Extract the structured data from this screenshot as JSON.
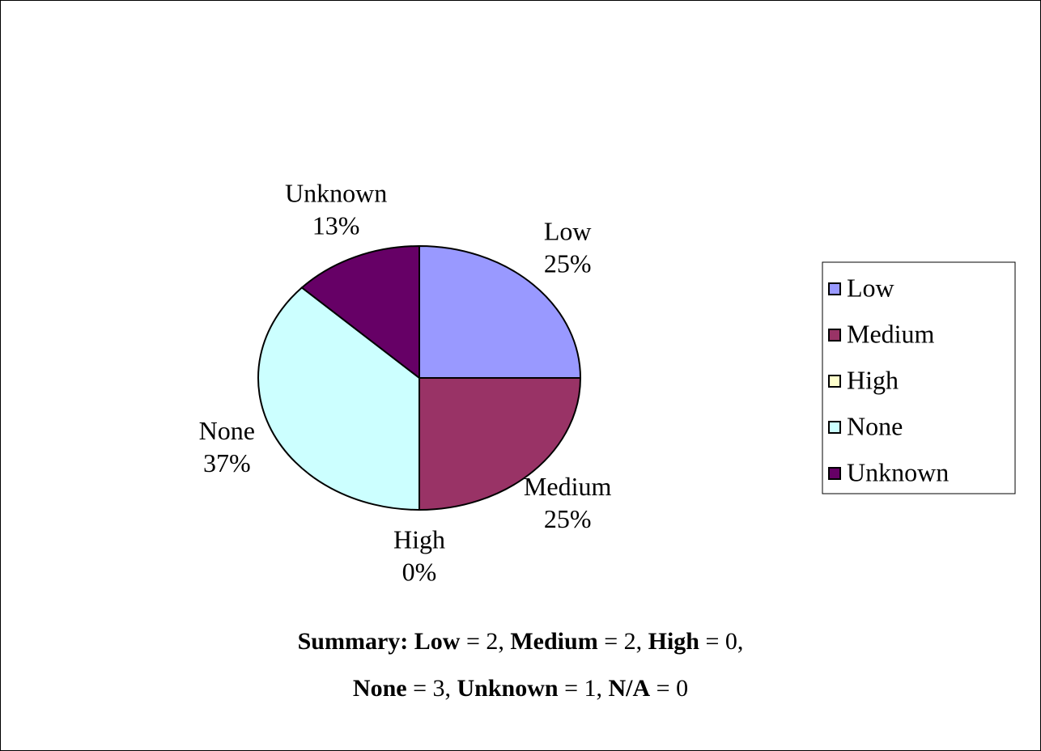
{
  "chart_data": {
    "type": "pie",
    "categories": [
      "Low",
      "Medium",
      "High",
      "None",
      "Unknown"
    ],
    "values": [
      25,
      25,
      0,
      37,
      13
    ],
    "value_labels": [
      "25%",
      "25%",
      "0%",
      "37%",
      "13%"
    ],
    "colors": [
      "#9999ff",
      "#993366",
      "#ffffcc",
      "#ccffff",
      "#660066"
    ],
    "legend": "right",
    "summary": {
      "title": "Summary:",
      "lines": [
        [
          {
            "name": "Low",
            "text": "= 2,"
          },
          {
            "name": "Medium",
            "text": "= 2,"
          },
          {
            "name": "High",
            "text": "= 0,"
          }
        ],
        [
          {
            "name": "None",
            "text": "= 3,"
          },
          {
            "name": "Unknown",
            "text": "= 1,"
          },
          {
            "name": "N/A",
            "text": "= 0"
          }
        ]
      ]
    }
  }
}
